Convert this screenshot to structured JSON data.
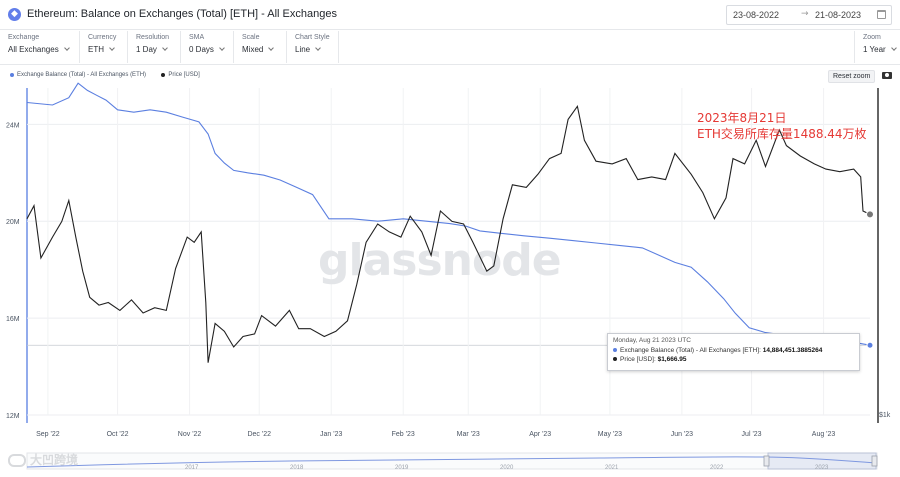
{
  "header": {
    "title": "Ethereum: Balance on Exchanges (Total) [ETH] - All Exchanges",
    "coin_icon": "ethereum-icon",
    "date_from": "23-08-2022",
    "date_arrow": "→",
    "date_to": "21-08-2023"
  },
  "controls": [
    {
      "label": "Exchange",
      "value": "All Exchanges"
    },
    {
      "label": "Currency",
      "value": "ETH"
    },
    {
      "label": "Resolution",
      "value": "1 Day"
    },
    {
      "label": "SMA",
      "value": "0 Days"
    },
    {
      "label": "Scale",
      "value": "Mixed"
    },
    {
      "label": "Chart Style",
      "value": "Line"
    },
    {
      "label": "Zoom",
      "value": "1 Year"
    }
  ],
  "toolbar": {
    "reset_label": "Reset zoom",
    "camera_icon": "camera-icon"
  },
  "legend": [
    {
      "name": "Exchange Balance (Total) - All Exchanges (ETH)",
      "color": "#5b7fe0"
    },
    {
      "name": "Price [USD]",
      "color": "#222222"
    }
  ],
  "watermark": "glassnode",
  "annotation": {
    "line1": "2023年8月21日",
    "line2": "ETH交易所库存量1488.44万枚",
    "color": "#e53935"
  },
  "tooltip": {
    "date": "Monday, Aug 21 2023 UTC",
    "row1_label": "Exchange Balance (Total) - All Exchanges [ETH]:",
    "row1_value": "14,884,451.3885264",
    "row2_label": "Price [USD]:",
    "row2_value": "$1,666.95"
  },
  "navigator": {
    "years": [
      "2017",
      "2018",
      "2019",
      "2020",
      "2021",
      "2022",
      "2023"
    ]
  },
  "brand": "大凹跨境",
  "chart_data": {
    "type": "line",
    "x_ticks": [
      "Sep '22",
      "Oct '22",
      "Nov '22",
      "Dec '22",
      "Jan '23",
      "Feb '23",
      "Mar '23",
      "Apr '23",
      "May '23",
      "Jun '23",
      "Jul '23",
      "Aug '23"
    ],
    "y_left_ticks": [
      "24M",
      "20M",
      "16M",
      "12M"
    ],
    "y_left_range": [
      12000000,
      25500000
    ],
    "y_right_tick": "$1k",
    "grid": true,
    "legend_position": "top-left",
    "series": [
      {
        "name": "Exchange Balance (Total) - All Exchanges (ETH)",
        "axis": "left",
        "color": "#5b7fe0",
        "points": [
          [
            "2022-08-23",
            24.9
          ],
          [
            "2022-09-03",
            24.8
          ],
          [
            "2022-09-10",
            25.1
          ],
          [
            "2022-09-14",
            25.7
          ],
          [
            "2022-09-18",
            25.4
          ],
          [
            "2022-09-22",
            25.2
          ],
          [
            "2022-09-26",
            25.0
          ],
          [
            "2022-10-01",
            24.6
          ],
          [
            "2022-10-08",
            24.5
          ],
          [
            "2022-10-15",
            24.6
          ],
          [
            "2022-10-22",
            24.5
          ],
          [
            "2022-10-29",
            24.3
          ],
          [
            "2022-11-05",
            24.1
          ],
          [
            "2022-11-09",
            23.6
          ],
          [
            "2022-11-12",
            22.8
          ],
          [
            "2022-11-16",
            22.4
          ],
          [
            "2022-11-20",
            22.1
          ],
          [
            "2022-11-26",
            22.0
          ],
          [
            "2022-12-03",
            21.9
          ],
          [
            "2022-12-10",
            21.7
          ],
          [
            "2022-12-17",
            21.4
          ],
          [
            "2022-12-24",
            21.1
          ],
          [
            "2022-12-31",
            20.1
          ],
          [
            "2023-01-10",
            20.1
          ],
          [
            "2023-01-21",
            20.0
          ],
          [
            "2023-02-01",
            20.1
          ],
          [
            "2023-02-11",
            20.0
          ],
          [
            "2023-02-21",
            19.9
          ],
          [
            "2023-02-28",
            19.8
          ],
          [
            "2023-03-06",
            19.6
          ],
          [
            "2023-03-15",
            19.5
          ],
          [
            "2023-03-25",
            19.4
          ],
          [
            "2023-04-05",
            19.3
          ],
          [
            "2023-04-15",
            19.2
          ],
          [
            "2023-04-25",
            19.1
          ],
          [
            "2023-05-05",
            19.0
          ],
          [
            "2023-05-15",
            18.9
          ],
          [
            "2023-05-22",
            18.6
          ],
          [
            "2023-05-29",
            18.3
          ],
          [
            "2023-06-05",
            18.1
          ],
          [
            "2023-06-12",
            17.5
          ],
          [
            "2023-06-19",
            16.8
          ],
          [
            "2023-06-24",
            16.2
          ],
          [
            "2023-06-30",
            15.6
          ],
          [
            "2023-07-07",
            15.4
          ],
          [
            "2023-07-15",
            15.3
          ],
          [
            "2023-07-25",
            15.2
          ],
          [
            "2023-08-05",
            15.1
          ],
          [
            "2023-08-14",
            15.0
          ],
          [
            "2023-08-21",
            14.88
          ]
        ]
      },
      {
        "name": "Price [USD]",
        "axis": "right",
        "color": "#222222",
        "points": [
          [
            "2022-08-23",
            1650
          ],
          [
            "2022-08-26",
            1700
          ],
          [
            "2022-08-29",
            1500
          ],
          [
            "2022-09-03",
            1580
          ],
          [
            "2022-09-07",
            1640
          ],
          [
            "2022-09-10",
            1720
          ],
          [
            "2022-09-13",
            1580
          ],
          [
            "2022-09-16",
            1450
          ],
          [
            "2022-09-19",
            1350
          ],
          [
            "2022-09-23",
            1320
          ],
          [
            "2022-09-27",
            1330
          ],
          [
            "2022-10-02",
            1300
          ],
          [
            "2022-10-07",
            1340
          ],
          [
            "2022-10-12",
            1290
          ],
          [
            "2022-10-17",
            1310
          ],
          [
            "2022-10-22",
            1300
          ],
          [
            "2022-10-26",
            1460
          ],
          [
            "2022-10-31",
            1580
          ],
          [
            "2022-11-03",
            1560
          ],
          [
            "2022-11-06",
            1600
          ],
          [
            "2022-11-08",
            1330
          ],
          [
            "2022-11-09",
            1100
          ],
          [
            "2022-11-12",
            1250
          ],
          [
            "2022-11-16",
            1220
          ],
          [
            "2022-11-20",
            1160
          ],
          [
            "2022-11-24",
            1200
          ],
          [
            "2022-11-29",
            1210
          ],
          [
            "2022-12-02",
            1280
          ],
          [
            "2022-12-08",
            1240
          ],
          [
            "2022-12-14",
            1300
          ],
          [
            "2022-12-18",
            1230
          ],
          [
            "2022-12-23",
            1230
          ],
          [
            "2022-12-29",
            1200
          ],
          [
            "2023-01-03",
            1220
          ],
          [
            "2023-01-08",
            1260
          ],
          [
            "2023-01-12",
            1400
          ],
          [
            "2023-01-16",
            1560
          ],
          [
            "2023-01-21",
            1630
          ],
          [
            "2023-01-26",
            1600
          ],
          [
            "2023-01-31",
            1580
          ],
          [
            "2023-02-04",
            1660
          ],
          [
            "2023-02-09",
            1600
          ],
          [
            "2023-02-13",
            1510
          ],
          [
            "2023-02-17",
            1680
          ],
          [
            "2023-02-22",
            1640
          ],
          [
            "2023-02-27",
            1630
          ],
          [
            "2023-03-03",
            1560
          ],
          [
            "2023-03-09",
            1450
          ],
          [
            "2023-03-12",
            1470
          ],
          [
            "2023-03-16",
            1650
          ],
          [
            "2023-03-20",
            1780
          ],
          [
            "2023-03-26",
            1770
          ],
          [
            "2023-03-31",
            1820
          ],
          [
            "2023-04-05",
            1880
          ],
          [
            "2023-04-10",
            1900
          ],
          [
            "2023-04-13",
            2030
          ],
          [
            "2023-04-17",
            2080
          ],
          [
            "2023-04-20",
            1950
          ],
          [
            "2023-04-25",
            1870
          ],
          [
            "2023-05-02",
            1860
          ],
          [
            "2023-05-08",
            1880
          ],
          [
            "2023-05-13",
            1800
          ],
          [
            "2023-05-19",
            1810
          ],
          [
            "2023-05-25",
            1800
          ],
          [
            "2023-05-29",
            1900
          ],
          [
            "2023-06-05",
            1820
          ],
          [
            "2023-06-10",
            1750
          ],
          [
            "2023-06-15",
            1650
          ],
          [
            "2023-06-20",
            1730
          ],
          [
            "2023-06-23",
            1880
          ],
          [
            "2023-06-28",
            1860
          ],
          [
            "2023-07-03",
            1950
          ],
          [
            "2023-07-07",
            1850
          ],
          [
            "2023-07-13",
            1990
          ],
          [
            "2023-07-16",
            1930
          ],
          [
            "2023-07-22",
            1890
          ],
          [
            "2023-07-28",
            1860
          ],
          [
            "2023-08-02",
            1840
          ],
          [
            "2023-08-08",
            1830
          ],
          [
            "2023-08-14",
            1840
          ],
          [
            "2023-08-17",
            1810
          ],
          [
            "2023-08-18",
            1680
          ],
          [
            "2023-08-21",
            1667
          ]
        ]
      }
    ]
  }
}
